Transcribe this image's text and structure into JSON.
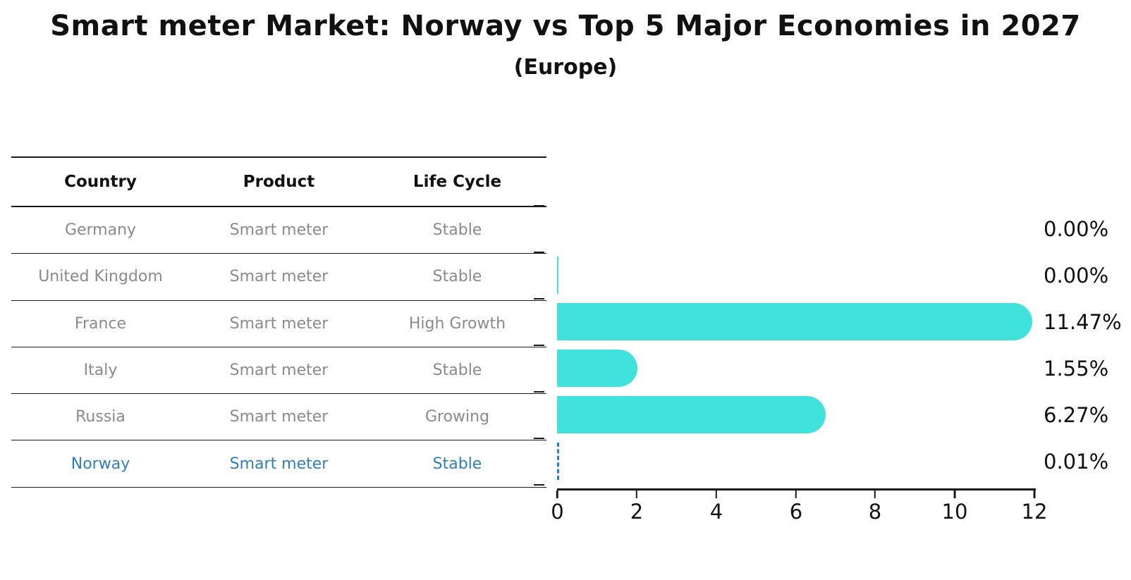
{
  "title": "Smart meter Market: Norway vs Top 5 Major Economies in 2027",
  "subtitle": "(Europe)",
  "table": {
    "headers": [
      "Country",
      "Product",
      "Life Cycle"
    ],
    "rows": [
      {
        "country": "Germany",
        "product": "Smart meter",
        "life_cycle": "Stable",
        "highlight": false
      },
      {
        "country": "United Kingdom",
        "product": "Smart meter",
        "life_cycle": "Stable",
        "highlight": false
      },
      {
        "country": "France",
        "product": "Smart meter",
        "life_cycle": "High Growth",
        "highlight": false
      },
      {
        "country": "Italy",
        "product": "Smart meter",
        "life_cycle": "Stable",
        "highlight": false
      },
      {
        "country": "Russia",
        "product": "Smart meter",
        "life_cycle": "Growing",
        "highlight": false
      },
      {
        "country": "Norway",
        "product": "Smart meter",
        "life_cycle": "Stable",
        "highlight": true
      }
    ]
  },
  "chart_data": {
    "type": "bar",
    "orientation": "horizontal",
    "title": "Smart meter Market: Norway vs Top 5 Major Economies in 2027",
    "subtitle": "(Europe)",
    "categories": [
      "Germany",
      "United Kingdom",
      "France",
      "Italy",
      "Russia",
      "Norway"
    ],
    "values": [
      0.0,
      0.0,
      11.47,
      1.55,
      6.27,
      0.01
    ],
    "value_labels": [
      "0.00%",
      "0.00%",
      "11.47%",
      "1.55%",
      "6.27%",
      "0.01%"
    ],
    "bar_kinds": [
      "none",
      "sliver",
      "pill",
      "pill",
      "pill",
      "dashed"
    ],
    "xlim": [
      0,
      12
    ],
    "xticks": [
      "0",
      "2",
      "4",
      "6",
      "8",
      "10",
      "12"
    ],
    "grid": false,
    "legend_position": "none"
  },
  "colors": {
    "bar": "#40E3DC",
    "highlight": "#2E7EC2",
    "muted_text": "#8a8a8a",
    "axis": "#1a1a1a"
  }
}
